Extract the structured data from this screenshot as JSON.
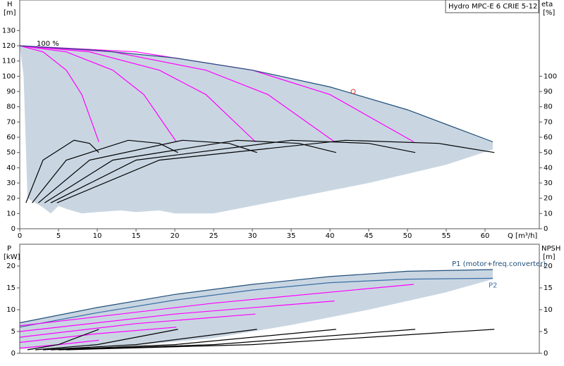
{
  "chart_data": [
    {
      "type": "line",
      "title": "Hydro MPC-E 6 CRIE 5-12",
      "ylabel": "H",
      "yunit": "[m]",
      "y2label": "eta",
      "y2unit": "[%]",
      "xlabel": "Q [m³/h]",
      "annotation": "100 %",
      "xlim": [
        0,
        67
      ],
      "xticks": [
        0,
        5,
        10,
        15,
        20,
        25,
        30,
        35,
        40,
        45,
        50,
        55,
        60
      ],
      "ylim": [
        0,
        150
      ],
      "yticks": [
        0,
        10,
        20,
        30,
        40,
        50,
        60,
        70,
        80,
        90,
        100,
        110,
        120,
        130
      ],
      "y2lim": [
        0,
        150
      ],
      "y2ticks": [
        0,
        10,
        20,
        30,
        40,
        50,
        60,
        70,
        80,
        90,
        100
      ],
      "series": [
        {
          "color": "#c9d6e2",
          "fill": true,
          "x": [
            0,
            10,
            20,
            30,
            40,
            50,
            61,
            61,
            55,
            45,
            35,
            25,
            20,
            18,
            15,
            13,
            10,
            8,
            6,
            5,
            4,
            3,
            1,
            0.5
          ],
          "values": [
            120,
            117,
            112,
            104,
            93,
            78,
            57,
            52,
            42,
            30,
            20,
            10,
            10,
            12,
            11,
            12,
            11,
            10,
            13,
            15,
            10,
            14,
            20,
            100
          ]
        },
        {
          "color": "#ff00ff",
          "x": [
            0,
            3,
            6,
            8,
            10.2
          ],
          "values": [
            120,
            116,
            104,
            88,
            57
          ]
        },
        {
          "color": "#ff00ff",
          "x": [
            0,
            6,
            12,
            16,
            20.2
          ],
          "values": [
            120,
            116,
            104,
            88,
            57
          ]
        },
        {
          "color": "#ff00ff",
          "x": [
            0,
            9,
            18,
            24,
            30.4
          ],
          "values": [
            120,
            116,
            104,
            88,
            57
          ]
        },
        {
          "color": "#ff00ff",
          "x": [
            0,
            12,
            24,
            32,
            40.6
          ],
          "values": [
            120,
            116,
            104,
            88,
            57
          ]
        },
        {
          "color": "#ff00ff",
          "x": [
            0,
            15,
            30,
            40,
            50.8
          ],
          "values": [
            120,
            116,
            104,
            88,
            57
          ]
        },
        {
          "color": "#1f4e79",
          "x": [
            0,
            10,
            20,
            30,
            40,
            50,
            61
          ],
          "values": [
            120,
            117,
            112,
            104,
            93,
            78,
            57
          ]
        },
        {
          "color": "#000000",
          "axis": "y2",
          "x": [
            0.8,
            3,
            7,
            9,
            10.2
          ],
          "values": [
            17,
            45,
            58,
            56,
            50
          ]
        },
        {
          "color": "#000000",
          "axis": "y2",
          "x": [
            1.6,
            6,
            14,
            18,
            20.4
          ],
          "values": [
            17,
            45,
            58,
            56,
            50
          ]
        },
        {
          "color": "#000000",
          "axis": "y2",
          "x": [
            2.4,
            9,
            21,
            27,
            30.6
          ],
          "values": [
            17,
            45,
            58,
            56,
            50
          ]
        },
        {
          "color": "#000000",
          "axis": "y2",
          "x": [
            3.2,
            12,
            28,
            36,
            40.8
          ],
          "values": [
            17,
            45,
            58,
            56,
            50
          ]
        },
        {
          "color": "#000000",
          "axis": "y2",
          "x": [
            4,
            15,
            35,
            45,
            51
          ],
          "values": [
            17,
            45,
            58,
            56,
            50
          ]
        },
        {
          "color": "#000000",
          "axis": "y2",
          "x": [
            4.8,
            18,
            42,
            54,
            61.2
          ],
          "values": [
            17,
            45,
            58,
            56,
            50
          ]
        }
      ],
      "points": {
        "color": "#e03030",
        "x": [
          43
        ],
        "values": [
          90
        ]
      }
    },
    {
      "type": "line",
      "ylabel": "P",
      "yunit": "[kW]",
      "y2label": "NPSH",
      "y2unit": "[m]",
      "xlim": [
        0,
        67
      ],
      "ylim": [
        0,
        25
      ],
      "yticks": [
        0,
        5,
        10,
        15,
        20
      ],
      "y2lim": [
        0,
        25
      ],
      "y2ticks": [
        0,
        5,
        10,
        15,
        20
      ],
      "series": [
        {
          "color": "#c9d6e2",
          "fill": true,
          "x": [
            0,
            10,
            20,
            30,
            40,
            50,
            61,
            61,
            55,
            45,
            35,
            25,
            15,
            5,
            0
          ],
          "values": [
            7,
            10.5,
            13.5,
            15.8,
            17.6,
            18.8,
            19.2,
            17,
            14,
            10,
            6.5,
            3.5,
            1.8,
            1,
            1
          ]
        },
        {
          "name": "P1 (motor+freq.converter)",
          "color": "#1f4e79",
          "x": [
            0,
            10,
            20,
            30,
            40,
            50,
            61
          ],
          "values": [
            7,
            10.5,
            13.5,
            15.8,
            17.6,
            18.8,
            19.2
          ]
        },
        {
          "name": "P2",
          "color": "#3a6ea5",
          "x": [
            0,
            10,
            20,
            30,
            40,
            50,
            61
          ],
          "values": [
            6,
            9.3,
            12.2,
            14.5,
            16.2,
            17,
            17.2
          ]
        },
        {
          "color": "#ff00ff",
          "x": [
            0,
            5,
            10.2
          ],
          "values": [
            1.2,
            2,
            3
          ]
        },
        {
          "color": "#ff00ff",
          "x": [
            0,
            10,
            20.2
          ],
          "values": [
            2.5,
            4.5,
            6
          ]
        },
        {
          "color": "#ff00ff",
          "x": [
            0,
            15,
            30.4
          ],
          "values": [
            3.7,
            6.8,
            9
          ]
        },
        {
          "color": "#ff00ff",
          "x": [
            0,
            20,
            40.6
          ],
          "values": [
            5,
            9,
            12
          ]
        },
        {
          "color": "#ff00ff",
          "x": [
            0,
            25,
            50.8
          ],
          "values": [
            6.3,
            11.5,
            15.8
          ]
        },
        {
          "color": "#000000",
          "axis": "y2",
          "x": [
            1,
            5,
            10.2
          ],
          "values": [
            0.8,
            2,
            5.5
          ]
        },
        {
          "color": "#000000",
          "axis": "y2",
          "x": [
            2,
            10,
            20.4
          ],
          "values": [
            0.8,
            2,
            5.5
          ]
        },
        {
          "color": "#000000",
          "axis": "y2",
          "x": [
            3,
            15,
            30.6
          ],
          "values": [
            0.8,
            2,
            5.5
          ]
        },
        {
          "color": "#000000",
          "axis": "y2",
          "x": [
            4,
            20,
            40.8
          ],
          "values": [
            0.8,
            2,
            5.5
          ]
        },
        {
          "color": "#000000",
          "axis": "y2",
          "x": [
            5,
            25,
            51
          ],
          "values": [
            0.8,
            2,
            5.5
          ]
        },
        {
          "color": "#000000",
          "axis": "y2",
          "x": [
            6,
            30,
            61.2
          ],
          "values": [
            0.8,
            2,
            5.5
          ]
        }
      ]
    }
  ]
}
